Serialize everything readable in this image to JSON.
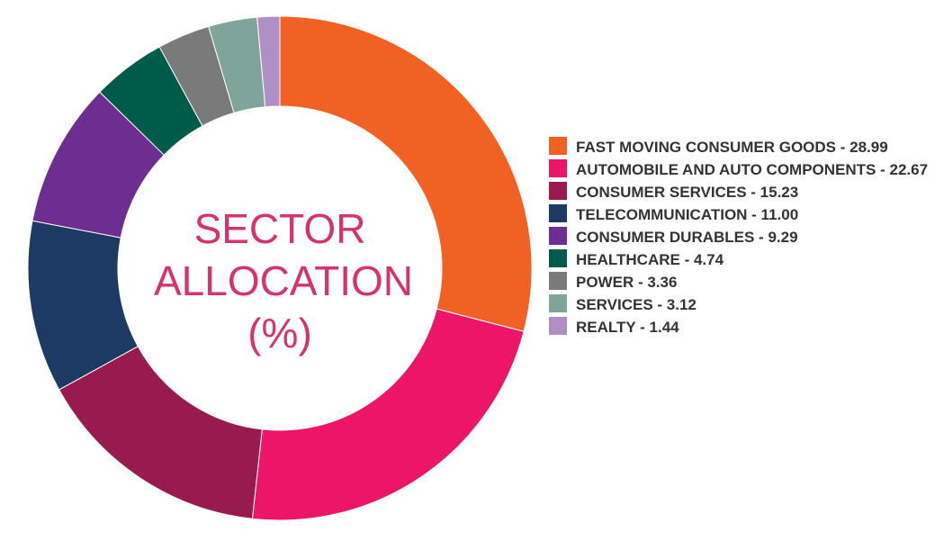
{
  "chart_data": {
    "type": "donut",
    "title": "SECTOR ALLOCATION (%)",
    "categories": [
      "FAST MOVING CONSUMER GOODS - 28.99",
      "AUTOMOBILE AND AUTO COMPONENTS - 22.67",
      "CONSUMER SERVICES - 15.23",
      "TELECOMMUNICATION - 11.00",
      "CONSUMER DURABLES - 9.29",
      "HEALTHCARE - 4.74",
      "POWER - 3.36",
      "SERVICES - 3.12",
      "REALTY - 1.44"
    ],
    "values": [
      28.99,
      22.67,
      15.23,
      11,
      9.29,
      4.74,
      3.36,
      3.12,
      1.44
    ],
    "colors": [
      "#f26124",
      "#ec1568",
      "#971b4e",
      "#1c3a63",
      "#6e2d91",
      "#005c4a",
      "#7a7a7a",
      "#7fa59a",
      "#b08fc6"
    ],
    "title_color": "#d6336c"
  }
}
